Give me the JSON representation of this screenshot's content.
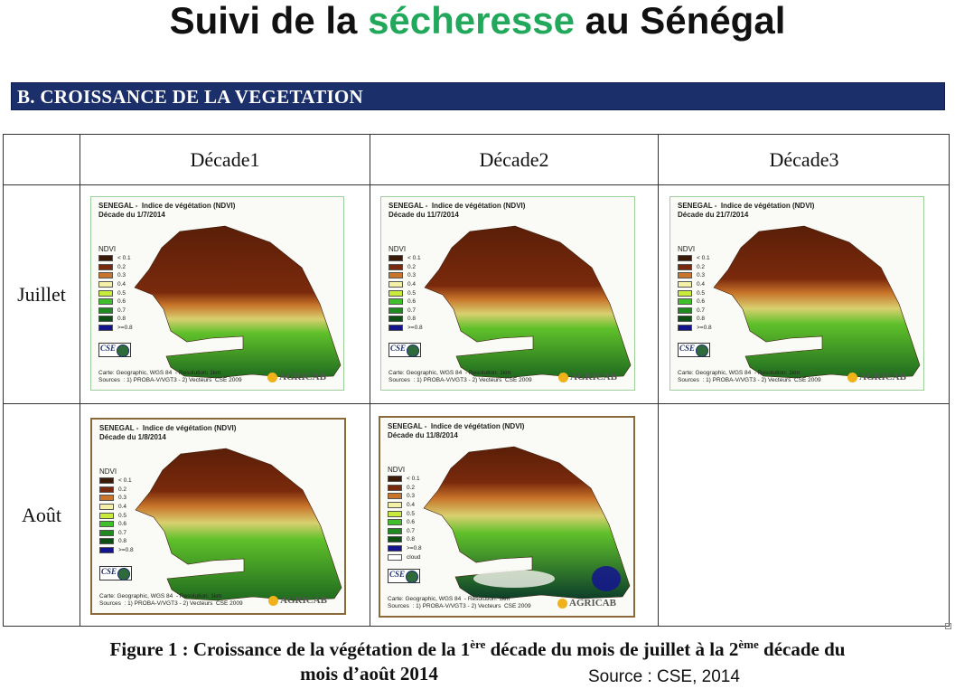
{
  "title": {
    "prefix": "Suivi de la ",
    "accent": "sécheresse",
    "suffix": " au Sénégal",
    "accent_color": "#22a85a"
  },
  "section": {
    "label": "B.  CROISSANCE DE LA VEGETATION",
    "bar_color": "#1b2f6b"
  },
  "columns": [
    "Décade1",
    "Décade2",
    "Décade3"
  ],
  "rows": [
    "Juillet",
    "Août"
  ],
  "legend": {
    "title": "NDVI",
    "items": [
      {
        "label": "< 0.1",
        "color": "#3b1a08"
      },
      {
        "label": "0.2",
        "color": "#7a2a0c"
      },
      {
        "label": "0.3",
        "color": "#c8742a"
      },
      {
        "label": "0.4",
        "color": "#f5f0a8"
      },
      {
        "label": "0.5",
        "color": "#c8ea3a"
      },
      {
        "label": "0.6",
        "color": "#3fbf2a"
      },
      {
        "label": "0.7",
        "color": "#1f8a1f"
      },
      {
        "label": "0.8",
        "color": "#0d4f12"
      },
      {
        "label": ">=0.8",
        "color": "#14148f"
      }
    ],
    "cloud_label": "cloud"
  },
  "maps": [
    {
      "title": "SENEGAL -  Indice de végétation (NDVI)",
      "subtitle": "Décade du 1/7/2014",
      "green_level": 0.25
    },
    {
      "title": "SENEGAL -  Indice de végétation (NDVI)",
      "subtitle": "Décade du 11/7/2014",
      "green_level": 0.35
    },
    {
      "title": "SENEGAL -  Indice de végétation (NDVI)",
      "subtitle": "Décade du 21/7/2014",
      "green_level": 0.45
    },
    {
      "title": "SENEGAL -  Indice de végétation (NDVI)",
      "subtitle": "Décade du 1/8/2014",
      "green_level": 0.6
    },
    {
      "title": "SENEGAL -  Indice de végétation (NDVI)",
      "subtitle": "Décade du 11/8/2014",
      "green_level": 0.7,
      "has_cloud": true
    }
  ],
  "map_footer": {
    "line1": "Carte: Geographic, WGS 84  - Resolution: 1km",
    "line2": "Sources  : 1) PROBA-V/VGT3 - 2) Vecteurs  CSE 2009",
    "cse_logo": "CSE",
    "agricab": "AGRICAB"
  },
  "caption": {
    "part1": "Figure 1 : Croissance de la végétation de la 1",
    "sup1": "ère",
    "part2": " décade du mois de juillet à la 2",
    "sup2": "ème",
    "part3": " décade du",
    "line2": "mois d’août 2014"
  },
  "source": "Source : CSE, 2014"
}
